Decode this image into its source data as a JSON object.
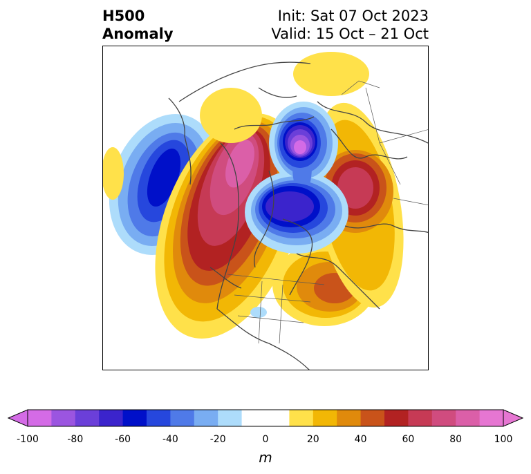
{
  "title": {
    "left_line1": "H500",
    "left_line2": "Anomaly",
    "right_line1": "Init: Sat 07 Oct 2023",
    "right_line2": "Valid: 15 Oct – 21 Oct"
  },
  "colorbar": {
    "unit": "m",
    "ticks": [
      "-100",
      "-80",
      "-60",
      "-40",
      "-20",
      "0",
      "20",
      "40",
      "60",
      "80",
      "100"
    ],
    "colors": [
      "#d46be6",
      "#9b55e0",
      "#6b3fd9",
      "#3b24cc",
      "#0010c9",
      "#2647dd",
      "#4f7ae8",
      "#79adf2",
      "#addcfb",
      "#ffffff",
      "#ffffff",
      "#ffe14a",
      "#f2b705",
      "#e08a0c",
      "#c9531a",
      "#b22222",
      "#c63a55",
      "#d04c7f",
      "#db5fa8",
      "#e676d2"
    ]
  },
  "map": {
    "anomalies": [
      {
        "name": "western-pacific-trough",
        "sign": "negative",
        "peak": -70
      },
      {
        "name": "alaska-western-canada-ridge",
        "sign": "positive",
        "peak": 90
      },
      {
        "name": "arctic-trough",
        "sign": "negative",
        "peak": -100
      },
      {
        "name": "hudson-bay-trough",
        "sign": "negative",
        "peak": -70
      },
      {
        "name": "siberia-ridge",
        "sign": "positive",
        "peak": 80
      },
      {
        "name": "northern-europe-ridge",
        "sign": "positive",
        "peak": 30
      },
      {
        "name": "northwest-atlantic-ridge",
        "sign": "positive",
        "peak": 50
      },
      {
        "name": "us-midwest-weak-trough",
        "sign": "negative",
        "peak": -20
      }
    ]
  }
}
